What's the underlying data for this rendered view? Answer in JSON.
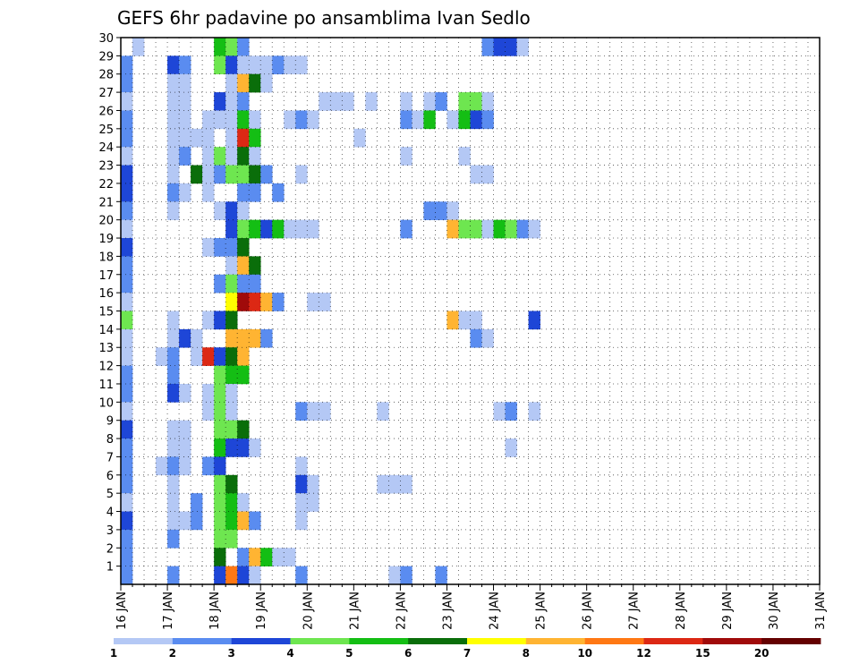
{
  "chart_data": {
    "type": "heatmap",
    "title": "GEFS 6hr padavine po ansamblima Ivan Sedlo",
    "xlabel": "",
    "ylabel": "",
    "x_ticks": [
      "16 JAN",
      "17 JAN",
      "18 JAN",
      "19 JAN",
      "20 JAN",
      "21 JAN",
      "22 JAN",
      "23 JAN",
      "24 JAN",
      "25 JAN",
      "26 JAN",
      "27 JAN",
      "28 JAN",
      "29 JAN",
      "30 JAN",
      "31 JAN"
    ],
    "y_ticks": [
      1,
      2,
      3,
      4,
      5,
      6,
      7,
      8,
      9,
      10,
      11,
      12,
      13,
      14,
      15,
      16,
      17,
      18,
      19,
      20,
      21,
      22,
      23,
      24,
      25,
      26,
      27,
      28,
      29,
      30
    ],
    "ylim": [
      0,
      30
    ],
    "grid": true,
    "colorbar": {
      "levels": [
        "1",
        "2",
        "3",
        "4",
        "5",
        "6",
        "7",
        "8",
        "10",
        "12",
        "15",
        "20"
      ],
      "colors": [
        "#b4c8f5",
        "#5a8cf0",
        "#1e46d7",
        "#6ee650",
        "#14be14",
        "#0a6e0a",
        "#ffff00",
        "#ffb432",
        "#ff7814",
        "#dc2814",
        "#a00a0a",
        "#640000"
      ]
    },
    "cells": [
      {
        "m": 30,
        "s": 1,
        "c": 1
      },
      {
        "m": 30,
        "s": 8,
        "c": 5
      },
      {
        "m": 30,
        "s": 9,
        "c": 4
      },
      {
        "m": 30,
        "s": 10,
        "c": 2
      },
      {
        "m": 30,
        "s": 31,
        "c": 2
      },
      {
        "m": 30,
        "s": 32,
        "c": 3
      },
      {
        "m": 30,
        "s": 33,
        "c": 3
      },
      {
        "m": 30,
        "s": 34,
        "c": 1
      },
      {
        "m": 29,
        "s": 0,
        "c": 2
      },
      {
        "m": 29,
        "s": 4,
        "c": 3
      },
      {
        "m": 29,
        "s": 5,
        "c": 2
      },
      {
        "m": 29,
        "s": 8,
        "c": 4
      },
      {
        "m": 29,
        "s": 9,
        "c": 3
      },
      {
        "m": 29,
        "s": 10,
        "c": 1
      },
      {
        "m": 29,
        "s": 11,
        "c": 1
      },
      {
        "m": 29,
        "s": 12,
        "c": 1
      },
      {
        "m": 29,
        "s": 13,
        "c": 2
      },
      {
        "m": 29,
        "s": 14,
        "c": 1
      },
      {
        "m": 29,
        "s": 15,
        "c": 1
      },
      {
        "m": 28,
        "s": 0,
        "c": 2
      },
      {
        "m": 28,
        "s": 4,
        "c": 1
      },
      {
        "m": 28,
        "s": 5,
        "c": 1
      },
      {
        "m": 28,
        "s": 9,
        "c": 1
      },
      {
        "m": 28,
        "s": 10,
        "c": 8
      },
      {
        "m": 28,
        "s": 11,
        "c": 6
      },
      {
        "m": 28,
        "s": 12,
        "c": 1
      },
      {
        "m": 27,
        "s": 0,
        "c": 1
      },
      {
        "m": 27,
        "s": 4,
        "c": 1
      },
      {
        "m": 27,
        "s": 5,
        "c": 1
      },
      {
        "m": 27,
        "s": 8,
        "c": 3
      },
      {
        "m": 27,
        "s": 9,
        "c": 1
      },
      {
        "m": 27,
        "s": 10,
        "c": 2
      },
      {
        "m": 27,
        "s": 17,
        "c": 1
      },
      {
        "m": 27,
        "s": 18,
        "c": 1
      },
      {
        "m": 27,
        "s": 19,
        "c": 1
      },
      {
        "m": 27,
        "s": 21,
        "c": 1
      },
      {
        "m": 27,
        "s": 24,
        "c": 1
      },
      {
        "m": 27,
        "s": 26,
        "c": 1
      },
      {
        "m": 27,
        "s": 27,
        "c": 2
      },
      {
        "m": 27,
        "s": 29,
        "c": 4
      },
      {
        "m": 27,
        "s": 30,
        "c": 4
      },
      {
        "m": 27,
        "s": 31,
        "c": 1
      },
      {
        "m": 26,
        "s": 0,
        "c": 2
      },
      {
        "m": 26,
        "s": 4,
        "c": 1
      },
      {
        "m": 26,
        "s": 5,
        "c": 1
      },
      {
        "m": 26,
        "s": 7,
        "c": 1
      },
      {
        "m": 26,
        "s": 8,
        "c": 1
      },
      {
        "m": 26,
        "s": 9,
        "c": 1
      },
      {
        "m": 26,
        "s": 10,
        "c": 5
      },
      {
        "m": 26,
        "s": 11,
        "c": 1
      },
      {
        "m": 26,
        "s": 14,
        "c": 1
      },
      {
        "m": 26,
        "s": 15,
        "c": 2
      },
      {
        "m": 26,
        "s": 16,
        "c": 1
      },
      {
        "m": 26,
        "s": 24,
        "c": 2
      },
      {
        "m": 26,
        "s": 25,
        "c": 1
      },
      {
        "m": 26,
        "s": 26,
        "c": 5
      },
      {
        "m": 26,
        "s": 28,
        "c": 1
      },
      {
        "m": 26,
        "s": 29,
        "c": 5
      },
      {
        "m": 26,
        "s": 30,
        "c": 3
      },
      {
        "m": 26,
        "s": 31,
        "c": 2
      },
      {
        "m": 25,
        "s": 0,
        "c": 2
      },
      {
        "m": 25,
        "s": 4,
        "c": 1
      },
      {
        "m": 25,
        "s": 5,
        "c": 1
      },
      {
        "m": 25,
        "s": 6,
        "c": 1
      },
      {
        "m": 25,
        "s": 7,
        "c": 1
      },
      {
        "m": 25,
        "s": 9,
        "c": 1
      },
      {
        "m": 25,
        "s": 10,
        "c": 10
      },
      {
        "m": 25,
        "s": 11,
        "c": 5
      },
      {
        "m": 25,
        "s": 20,
        "c": 1
      },
      {
        "m": 24,
        "s": 0,
        "c": 1
      },
      {
        "m": 24,
        "s": 4,
        "c": 1
      },
      {
        "m": 24,
        "s": 5,
        "c": 2
      },
      {
        "m": 24,
        "s": 7,
        "c": 1
      },
      {
        "m": 24,
        "s": 8,
        "c": 4
      },
      {
        "m": 24,
        "s": 9,
        "c": 1
      },
      {
        "m": 24,
        "s": 10,
        "c": 6
      },
      {
        "m": 24,
        "s": 11,
        "c": 1
      },
      {
        "m": 24,
        "s": 24,
        "c": 1
      },
      {
        "m": 24,
        "s": 29,
        "c": 1
      },
      {
        "m": 23,
        "s": 0,
        "c": 3
      },
      {
        "m": 23,
        "s": 4,
        "c": 1
      },
      {
        "m": 23,
        "s": 6,
        "c": 6
      },
      {
        "m": 23,
        "s": 7,
        "c": 1
      },
      {
        "m": 23,
        "s": 8,
        "c": 2
      },
      {
        "m": 23,
        "s": 9,
        "c": 4
      },
      {
        "m": 23,
        "s": 10,
        "c": 4
      },
      {
        "m": 23,
        "s": 11,
        "c": 6
      },
      {
        "m": 23,
        "s": 12,
        "c": 2
      },
      {
        "m": 23,
        "s": 15,
        "c": 1
      },
      {
        "m": 23,
        "s": 30,
        "c": 1
      },
      {
        "m": 23,
        "s": 31,
        "c": 1
      },
      {
        "m": 22,
        "s": 0,
        "c": 3
      },
      {
        "m": 22,
        "s": 4,
        "c": 2
      },
      {
        "m": 22,
        "s": 5,
        "c": 1
      },
      {
        "m": 22,
        "s": 7,
        "c": 1
      },
      {
        "m": 22,
        "s": 10,
        "c": 2
      },
      {
        "m": 22,
        "s": 11,
        "c": 2
      },
      {
        "m": 22,
        "s": 13,
        "c": 2
      },
      {
        "m": 21,
        "s": 0,
        "c": 2
      },
      {
        "m": 21,
        "s": 4,
        "c": 1
      },
      {
        "m": 21,
        "s": 8,
        "c": 1
      },
      {
        "m": 21,
        "s": 9,
        "c": 3
      },
      {
        "m": 21,
        "s": 10,
        "c": 1
      },
      {
        "m": 21,
        "s": 26,
        "c": 2
      },
      {
        "m": 21,
        "s": 27,
        "c": 2
      },
      {
        "m": 21,
        "s": 28,
        "c": 1
      },
      {
        "m": 20,
        "s": 0,
        "c": 1
      },
      {
        "m": 20,
        "s": 9,
        "c": 3
      },
      {
        "m": 20,
        "s": 10,
        "c": 4
      },
      {
        "m": 20,
        "s": 11,
        "c": 5
      },
      {
        "m": 20,
        "s": 12,
        "c": 3
      },
      {
        "m": 20,
        "s": 13,
        "c": 5
      },
      {
        "m": 20,
        "s": 14,
        "c": 1
      },
      {
        "m": 20,
        "s": 15,
        "c": 1
      },
      {
        "m": 20,
        "s": 16,
        "c": 1
      },
      {
        "m": 20,
        "s": 24,
        "c": 2
      },
      {
        "m": 20,
        "s": 28,
        "c": 8
      },
      {
        "m": 20,
        "s": 29,
        "c": 4
      },
      {
        "m": 20,
        "s": 30,
        "c": 4
      },
      {
        "m": 20,
        "s": 31,
        "c": 1
      },
      {
        "m": 20,
        "s": 32,
        "c": 5
      },
      {
        "m": 20,
        "s": 33,
        "c": 4
      },
      {
        "m": 20,
        "s": 34,
        "c": 2
      },
      {
        "m": 20,
        "s": 35,
        "c": 1
      },
      {
        "m": 19,
        "s": 0,
        "c": 3
      },
      {
        "m": 19,
        "s": 7,
        "c": 1
      },
      {
        "m": 19,
        "s": 8,
        "c": 2
      },
      {
        "m": 19,
        "s": 9,
        "c": 2
      },
      {
        "m": 19,
        "s": 10,
        "c": 6
      },
      {
        "m": 18,
        "s": 0,
        "c": 2
      },
      {
        "m": 18,
        "s": 9,
        "c": 1
      },
      {
        "m": 18,
        "s": 10,
        "c": 8
      },
      {
        "m": 18,
        "s": 11,
        "c": 6
      },
      {
        "m": 17,
        "s": 0,
        "c": 2
      },
      {
        "m": 17,
        "s": 8,
        "c": 2
      },
      {
        "m": 17,
        "s": 9,
        "c": 4
      },
      {
        "m": 17,
        "s": 10,
        "c": 2
      },
      {
        "m": 17,
        "s": 11,
        "c": 2
      },
      {
        "m": 16,
        "s": 0,
        "c": 1
      },
      {
        "m": 16,
        "s": 9,
        "c": 7
      },
      {
        "m": 16,
        "s": 10,
        "c": 11
      },
      {
        "m": 16,
        "s": 11,
        "c": 10
      },
      {
        "m": 16,
        "s": 12,
        "c": 8
      },
      {
        "m": 16,
        "s": 13,
        "c": 2
      },
      {
        "m": 16,
        "s": 16,
        "c": 1
      },
      {
        "m": 16,
        "s": 17,
        "c": 1
      },
      {
        "m": 15,
        "s": 0,
        "c": 4
      },
      {
        "m": 15,
        "s": 4,
        "c": 1
      },
      {
        "m": 15,
        "s": 7,
        "c": 1
      },
      {
        "m": 15,
        "s": 8,
        "c": 3
      },
      {
        "m": 15,
        "s": 9,
        "c": 6
      },
      {
        "m": 15,
        "s": 28,
        "c": 8
      },
      {
        "m": 15,
        "s": 29,
        "c": 1
      },
      {
        "m": 15,
        "s": 30,
        "c": 1
      },
      {
        "m": 15,
        "s": 35,
        "c": 3
      },
      {
        "m": 14,
        "s": 0,
        "c": 1
      },
      {
        "m": 14,
        "s": 4,
        "c": 1
      },
      {
        "m": 14,
        "s": 5,
        "c": 3
      },
      {
        "m": 14,
        "s": 6,
        "c": 1
      },
      {
        "m": 14,
        "s": 9,
        "c": 8
      },
      {
        "m": 14,
        "s": 10,
        "c": 8
      },
      {
        "m": 14,
        "s": 11,
        "c": 8
      },
      {
        "m": 14,
        "s": 12,
        "c": 2
      },
      {
        "m": 14,
        "s": 30,
        "c": 2
      },
      {
        "m": 14,
        "s": 31,
        "c": 1
      },
      {
        "m": 13,
        "s": 0,
        "c": 1
      },
      {
        "m": 13,
        "s": 3,
        "c": 1
      },
      {
        "m": 13,
        "s": 4,
        "c": 2
      },
      {
        "m": 13,
        "s": 6,
        "c": 1
      },
      {
        "m": 13,
        "s": 7,
        "c": 10
      },
      {
        "m": 13,
        "s": 8,
        "c": 3
      },
      {
        "m": 13,
        "s": 9,
        "c": 6
      },
      {
        "m": 13,
        "s": 10,
        "c": 8
      },
      {
        "m": 12,
        "s": 0,
        "c": 2
      },
      {
        "m": 12,
        "s": 4,
        "c": 2
      },
      {
        "m": 12,
        "s": 8,
        "c": 4
      },
      {
        "m": 12,
        "s": 9,
        "c": 5
      },
      {
        "m": 12,
        "s": 10,
        "c": 5
      },
      {
        "m": 11,
        "s": 0,
        "c": 2
      },
      {
        "m": 11,
        "s": 4,
        "c": 3
      },
      {
        "m": 11,
        "s": 5,
        "c": 1
      },
      {
        "m": 11,
        "s": 7,
        "c": 1
      },
      {
        "m": 11,
        "s": 8,
        "c": 4
      },
      {
        "m": 11,
        "s": 9,
        "c": 1
      },
      {
        "m": 10,
        "s": 0,
        "c": 1
      },
      {
        "m": 10,
        "s": 7,
        "c": 1
      },
      {
        "m": 10,
        "s": 8,
        "c": 4
      },
      {
        "m": 10,
        "s": 9,
        "c": 1
      },
      {
        "m": 10,
        "s": 15,
        "c": 2
      },
      {
        "m": 10,
        "s": 16,
        "c": 1
      },
      {
        "m": 10,
        "s": 17,
        "c": 1
      },
      {
        "m": 10,
        "s": 22,
        "c": 1
      },
      {
        "m": 10,
        "s": 32,
        "c": 1
      },
      {
        "m": 10,
        "s": 33,
        "c": 2
      },
      {
        "m": 10,
        "s": 35,
        "c": 1
      },
      {
        "m": 9,
        "s": 0,
        "c": 3
      },
      {
        "m": 9,
        "s": 4,
        "c": 1
      },
      {
        "m": 9,
        "s": 5,
        "c": 1
      },
      {
        "m": 9,
        "s": 8,
        "c": 4
      },
      {
        "m": 9,
        "s": 9,
        "c": 4
      },
      {
        "m": 9,
        "s": 10,
        "c": 6
      },
      {
        "m": 8,
        "s": 0,
        "c": 2
      },
      {
        "m": 8,
        "s": 4,
        "c": 1
      },
      {
        "m": 8,
        "s": 5,
        "c": 1
      },
      {
        "m": 8,
        "s": 8,
        "c": 5
      },
      {
        "m": 8,
        "s": 9,
        "c": 3
      },
      {
        "m": 8,
        "s": 10,
        "c": 3
      },
      {
        "m": 8,
        "s": 11,
        "c": 1
      },
      {
        "m": 8,
        "s": 33,
        "c": 1
      },
      {
        "m": 7,
        "s": 0,
        "c": 2
      },
      {
        "m": 7,
        "s": 3,
        "c": 1
      },
      {
        "m": 7,
        "s": 4,
        "c": 2
      },
      {
        "m": 7,
        "s": 5,
        "c": 1
      },
      {
        "m": 7,
        "s": 7,
        "c": 2
      },
      {
        "m": 7,
        "s": 8,
        "c": 3
      },
      {
        "m": 7,
        "s": 15,
        "c": 1
      },
      {
        "m": 6,
        "s": 0,
        "c": 2
      },
      {
        "m": 6,
        "s": 4,
        "c": 1
      },
      {
        "m": 6,
        "s": 8,
        "c": 4
      },
      {
        "m": 6,
        "s": 9,
        "c": 6
      },
      {
        "m": 6,
        "s": 15,
        "c": 3
      },
      {
        "m": 6,
        "s": 16,
        "c": 1
      },
      {
        "m": 6,
        "s": 22,
        "c": 1
      },
      {
        "m": 6,
        "s": 23,
        "c": 1
      },
      {
        "m": 6,
        "s": 24,
        "c": 1
      },
      {
        "m": 5,
        "s": 0,
        "c": 1
      },
      {
        "m": 5,
        "s": 4,
        "c": 1
      },
      {
        "m": 5,
        "s": 6,
        "c": 2
      },
      {
        "m": 5,
        "s": 8,
        "c": 4
      },
      {
        "m": 5,
        "s": 9,
        "c": 5
      },
      {
        "m": 5,
        "s": 10,
        "c": 1
      },
      {
        "m": 5,
        "s": 15,
        "c": 1
      },
      {
        "m": 5,
        "s": 16,
        "c": 1
      },
      {
        "m": 4,
        "s": 0,
        "c": 3
      },
      {
        "m": 4,
        "s": 4,
        "c": 1
      },
      {
        "m": 4,
        "s": 5,
        "c": 1
      },
      {
        "m": 4,
        "s": 6,
        "c": 2
      },
      {
        "m": 4,
        "s": 8,
        "c": 4
      },
      {
        "m": 4,
        "s": 9,
        "c": 5
      },
      {
        "m": 4,
        "s": 10,
        "c": 8
      },
      {
        "m": 4,
        "s": 11,
        "c": 2
      },
      {
        "m": 4,
        "s": 15,
        "c": 1
      },
      {
        "m": 3,
        "s": 0,
        "c": 2
      },
      {
        "m": 3,
        "s": 4,
        "c": 2
      },
      {
        "m": 3,
        "s": 8,
        "c": 4
      },
      {
        "m": 3,
        "s": 9,
        "c": 4
      },
      {
        "m": 2,
        "s": 0,
        "c": 2
      },
      {
        "m": 2,
        "s": 8,
        "c": 6
      },
      {
        "m": 2,
        "s": 10,
        "c": 2
      },
      {
        "m": 2,
        "s": 11,
        "c": 8
      },
      {
        "m": 2,
        "s": 12,
        "c": 5
      },
      {
        "m": 2,
        "s": 13,
        "c": 1
      },
      {
        "m": 2,
        "s": 14,
        "c": 1
      },
      {
        "m": 1,
        "s": 0,
        "c": 2
      },
      {
        "m": 1,
        "s": 4,
        "c": 2
      },
      {
        "m": 1,
        "s": 8,
        "c": 3
      },
      {
        "m": 1,
        "s": 9,
        "c": 9
      },
      {
        "m": 1,
        "s": 10,
        "c": 3
      },
      {
        "m": 1,
        "s": 11,
        "c": 1
      },
      {
        "m": 1,
        "s": 15,
        "c": 2
      },
      {
        "m": 1,
        "s": 23,
        "c": 1
      },
      {
        "m": 1,
        "s": 24,
        "c": 2
      },
      {
        "m": 1,
        "s": 27,
        "c": 2
      }
    ]
  }
}
